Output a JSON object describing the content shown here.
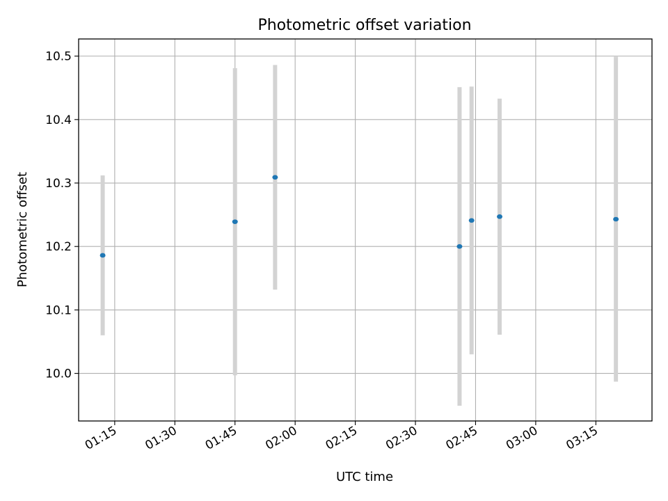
{
  "chart_data": {
    "type": "scatter",
    "title": "Photometric offset variation",
    "xlabel": "UTC time",
    "ylabel": "Photometric offset",
    "x_axis_type": "time",
    "xlim": [
      "01:06",
      "03:29"
    ],
    "ylim": [
      9.925,
      10.527
    ],
    "x_ticks": [
      "01:15",
      "01:30",
      "01:45",
      "02:00",
      "02:15",
      "02:30",
      "02:45",
      "03:00",
      "03:15"
    ],
    "y_ticks": [
      10.0,
      10.1,
      10.2,
      10.3,
      10.4,
      10.5
    ],
    "y_tick_labels": [
      "10.0",
      "10.1",
      "10.2",
      "10.3",
      "10.4",
      "10.5"
    ],
    "grid": true,
    "legend": "none",
    "marker_color": "#1f77b4",
    "errorbar_color": "#d3d3d3",
    "points": [
      {
        "x": "01:12",
        "y": 10.186,
        "ylow": 10.06,
        "yhigh": 10.312
      },
      {
        "x": "01:45",
        "y": 10.239,
        "ylow": 9.997,
        "yhigh": 10.481
      },
      {
        "x": "01:55",
        "y": 10.309,
        "ylow": 10.132,
        "yhigh": 10.486
      },
      {
        "x": "02:41",
        "y": 10.2,
        "ylow": 9.949,
        "yhigh": 10.451
      },
      {
        "x": "02:44",
        "y": 10.241,
        "ylow": 10.03,
        "yhigh": 10.452
      },
      {
        "x": "02:51",
        "y": 10.247,
        "ylow": 10.061,
        "yhigh": 10.433
      },
      {
        "x": "03:20",
        "y": 10.243,
        "ylow": 9.987,
        "yhigh": 10.499
      }
    ]
  }
}
